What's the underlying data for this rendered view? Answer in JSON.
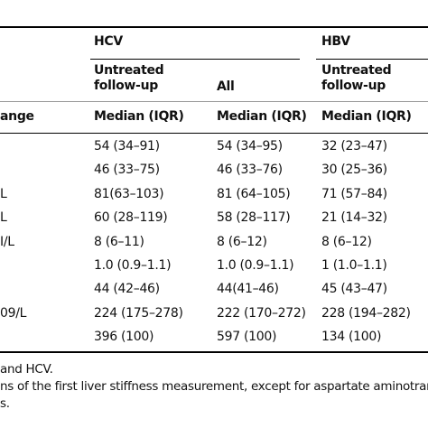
{
  "header": {
    "groups": [
      "HCV",
      "HBV"
    ],
    "columns": [
      "Untreated follow-up",
      "All",
      "Untreated follow-up"
    ],
    "range_header": "ange",
    "stats": [
      "Median (IQR)",
      "Median (IQR)",
      "Median (IQR)"
    ]
  },
  "table": {
    "rows": [
      {
        "cells": [
          "54 (34–91)",
          "54 (34–95)",
          "32 (23–47)"
        ]
      },
      {
        "cells": [
          "46 (33–75)",
          "46 (33–76)",
          "30 (25–36)"
        ]
      },
      {
        "label": "L",
        "cells": [
          "81(63–103)",
          "81 (64–105)",
          "71 (57–84)"
        ]
      },
      {
        "label": "L",
        "cells": [
          "60 (28–119)",
          "58 (28–117)",
          "21 (14–32)"
        ]
      },
      {
        "label": "I/L",
        "cells": [
          "8 (6–11)",
          "8 (6–12)",
          "8 (6–12)"
        ]
      },
      {
        "cells": [
          "1.0 (0.9–1.1)",
          "1.0 (0.9–1.1)",
          "1 (1.0–1.1)"
        ]
      },
      {
        "cells": [
          "44 (42–46)",
          "44(41–46)",
          "45 (43–47)"
        ]
      },
      {
        "label": "09/L",
        "cells": [
          "224 (175–278)",
          "222 (170–272)",
          "228 (194–282)"
        ]
      },
      {
        "cells": [
          "396 (100)",
          "597 (100)",
          "134 (100)"
        ]
      }
    ]
  },
  "footnotes": [
    "and HCV.",
    "ns of the first liver stiffness measurement, except for aspartate aminotransf",
    "s."
  ]
}
